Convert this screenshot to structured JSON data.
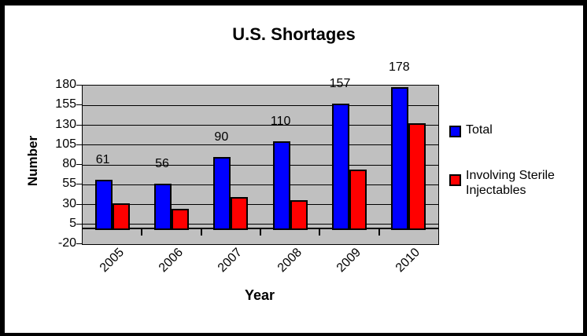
{
  "chart_data": {
    "type": "bar",
    "title": "U.S. Shortages",
    "xlabel": "Year",
    "ylabel": "Number",
    "categories": [
      "2005",
      "2006",
      "2007",
      "2008",
      "2009",
      "2010"
    ],
    "series": [
      {
        "name": "Total",
        "color": "#0000ff",
        "values": [
          61,
          56,
          90,
          110,
          157,
          178
        ],
        "data_labels": [
          61,
          56,
          90,
          110,
          157,
          178
        ]
      },
      {
        "name": "Involving Sterile Injectables",
        "color": "#ff0000",
        "values": [
          31,
          25,
          39,
          35,
          74,
          132
        ],
        "data_labels": null
      }
    ],
    "ylim": [
      -20,
      180
    ],
    "yticks": [
      180,
      155,
      130,
      105,
      80,
      55,
      30,
      5,
      -20
    ],
    "grid": true,
    "gridline_color": "#000000",
    "plot_background": "#c0c0c0",
    "page_background": "#ffffff",
    "frame_color": "#000000",
    "bar_outline": "#000000",
    "legend_position": "right",
    "x_tick_label_rotation_deg": 45
  }
}
